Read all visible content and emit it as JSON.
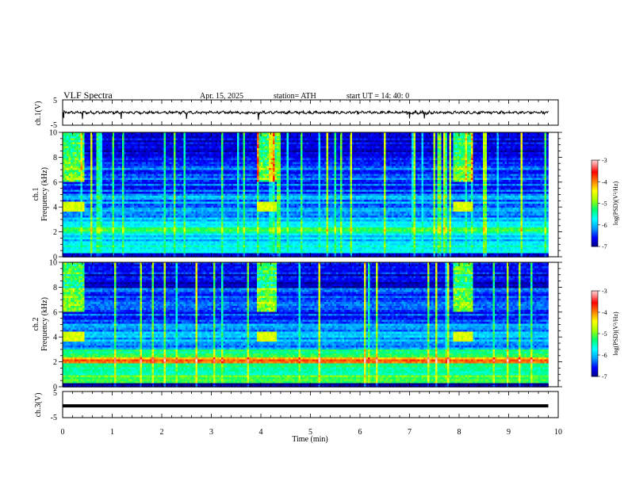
{
  "header": {
    "title": "VLF  Spectra",
    "date": "Apr. 15, 2025",
    "station": "station= ATH",
    "start_ut": "start  UT  =   14: 40: 0"
  },
  "chart_data": [
    {
      "type": "line",
      "panel": "ch1-waveform",
      "ylabel": "ch.1(V)",
      "ylim": [
        -5,
        5
      ],
      "yticks": [
        "5",
        "-5"
      ],
      "xlim": [
        0,
        10
      ],
      "series": [
        {
          "values": "noisy waveform around 0 V, spread about ±0.5 V, spikes near 0.0, 0.4, 1.2, 2.5, 4.0 min"
        }
      ]
    },
    {
      "type": "heatmap",
      "panel": "ch1-spectrogram",
      "ylabel": "ch.1\nFrequency (kHz)",
      "ylim": [
        0,
        10
      ],
      "yticks": [
        "0",
        "2",
        "4",
        "6",
        "8",
        "10"
      ],
      "xlim": [
        0,
        10
      ],
      "data_end_min": 9.8,
      "colorbar": {
        "label": "log(PSD)(V²/Hz)",
        "range": [
          -7,
          -3
        ],
        "ticks": [
          "-3",
          "-4",
          "-5",
          "-6",
          "-7"
        ]
      },
      "features": {
        "transmitter_bursts_min": [
          [
            0.0,
            0.4
          ],
          [
            3.9,
            4.3
          ],
          [
            7.85,
            8.25
          ]
        ],
        "burst_band_khz": [
          3.7,
          4.5
        ],
        "strong_band_khz": [
          1.8,
          2.3
        ]
      }
    },
    {
      "type": "heatmap",
      "panel": "ch2-spectrogram",
      "ylabel": "ch.2\nFrequency (kHz)",
      "ylim": [
        0,
        10
      ],
      "yticks": [
        "0",
        "2",
        "4",
        "6",
        "8",
        "10"
      ],
      "xlim": [
        0,
        10
      ],
      "data_end_min": 9.8,
      "colorbar": {
        "label": "log(PSD)(V²/Hz)",
        "range": [
          -7,
          -3
        ],
        "ticks": [
          "-3",
          "-4",
          "-5",
          "-6",
          "-7"
        ]
      },
      "features": {
        "transmitter_bursts_min": [
          [
            0.0,
            0.4
          ],
          [
            3.9,
            4.3
          ],
          [
            7.85,
            8.25
          ]
        ],
        "burst_band_khz": [
          3.7,
          4.5
        ],
        "strong_band_khz": [
          1.9,
          2.3
        ]
      }
    },
    {
      "type": "line",
      "panel": "ch3-waveform",
      "ylabel": "ch.3(V)",
      "ylim": [
        -5,
        5
      ],
      "yticks": [
        "5",
        "-5"
      ],
      "xlim": [
        0,
        10
      ],
      "xticks": [
        "0",
        "1",
        "2",
        "3",
        "4",
        "5",
        "6",
        "7",
        "8",
        "9",
        "10"
      ],
      "xlabel": "Time  (min)",
      "series": [
        {
          "values": "constant about -0.5 V"
        }
      ]
    }
  ],
  "colors": {
    "colormap": [
      "#000080",
      "#0000ff",
      "#00a0ff",
      "#00ffff",
      "#00ff70",
      "#a0ff00",
      "#ffff00",
      "#ff8000",
      "#ff0000",
      "#ffb0b0",
      "#ffffff"
    ],
    "line": "#000000"
  }
}
